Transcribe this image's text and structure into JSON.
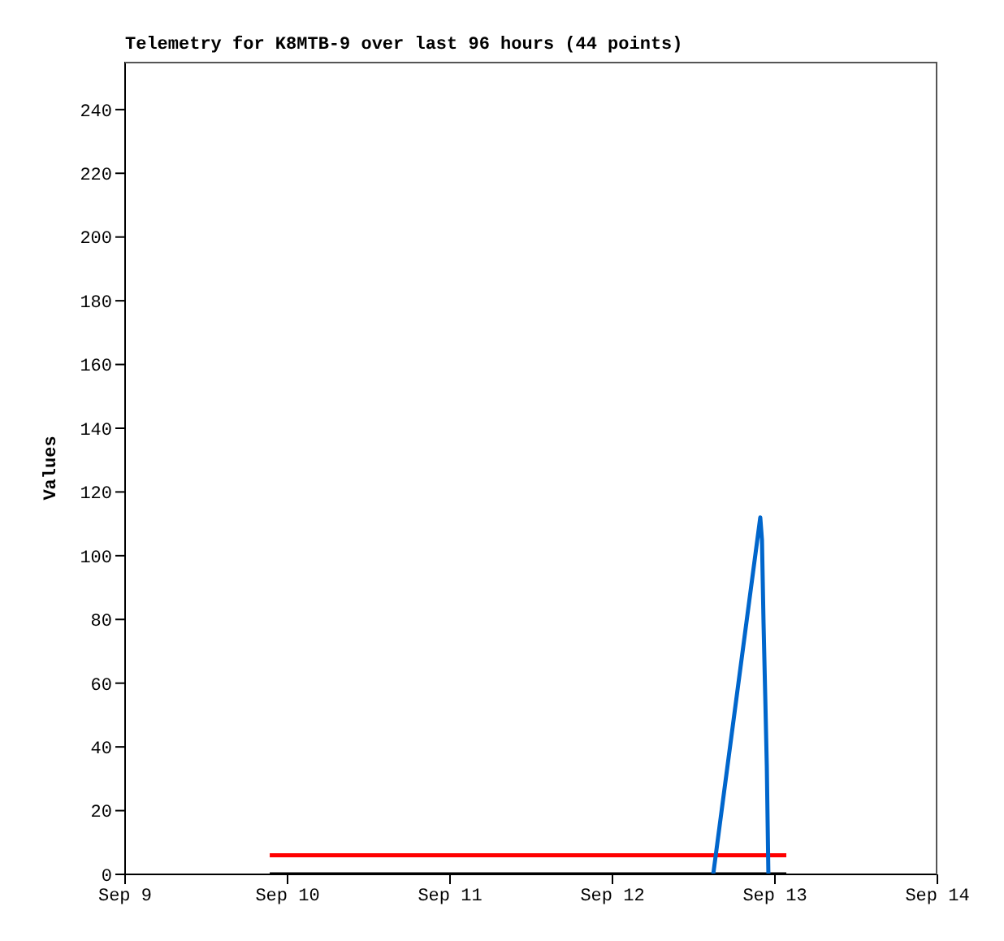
{
  "chart_data": {
    "type": "line",
    "title": "Telemetry for K8MTB-9 over last 96 hours (44 points)",
    "ylabel": "Values",
    "marker": "none",
    "line_style": "solid",
    "series": [
      {
        "color": "#ff0000",
        "x": [
          "--09-09T21:22",
          "--09-13T01:41"
        ],
        "values": [
          6,
          6
        ]
      },
      {
        "color": "#000000",
        "x": [
          "--09-09T21:22",
          "--09-13T01:41"
        ],
        "values": [
          0,
          0
        ]
      },
      {
        "color": "#0066cc",
        "x": [
          "--09-12T14:53",
          "--09-12T21:50",
          "--09-12T22:05",
          "--09-12T22:19",
          "--09-12T22:34",
          "--09-12T22:48",
          "--09-12T23:02"
        ],
        "values": [
          0,
          112,
          105,
          79,
          56,
          34,
          0
        ]
      }
    ],
    "xlim": [
      "--09-09",
      "--09-14"
    ],
    "xticks": [
      {
        "value": "--09-09",
        "label": "Sep 9"
      },
      {
        "value": "--09-10",
        "label": "Sep 10"
      },
      {
        "value": "--09-11",
        "label": "Sep 11"
      },
      {
        "value": "--09-12",
        "label": "Sep 12"
      },
      {
        "value": "--09-13",
        "label": "Sep 13"
      },
      {
        "value": "--09-14",
        "label": "Sep 14"
      }
    ],
    "ylim": [
      0,
      255
    ],
    "yticks": [
      0,
      20,
      40,
      60,
      80,
      100,
      120,
      140,
      160,
      180,
      200,
      220,
      240
    ]
  }
}
